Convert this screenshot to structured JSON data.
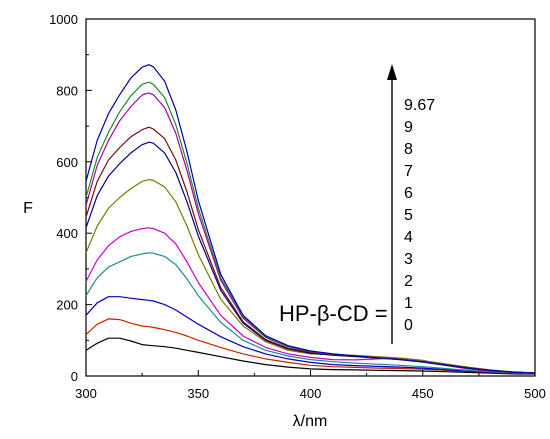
{
  "chart_data": {
    "type": "line",
    "title": "",
    "xlabel": "λ/nm",
    "ylabel": "F",
    "xlim": [
      300,
      500
    ],
    "ylim": [
      0,
      1000
    ],
    "xticks": [
      300,
      350,
      400,
      450,
      500
    ],
    "yticks": [
      0,
      200,
      400,
      600,
      800,
      1000
    ],
    "grid": false,
    "annotation": {
      "label": "HP-β-CD =",
      "concentrations": [
        "9.67",
        "9",
        "8",
        "7",
        "6",
        "5",
        "4",
        "3",
        "2",
        "1",
        "0"
      ],
      "arrow": "up"
    },
    "x": [
      300,
      305,
      310,
      315,
      320,
      325,
      328,
      330,
      335,
      340,
      345,
      350,
      360,
      370,
      380,
      390,
      400,
      410,
      420,
      430,
      440,
      450,
      460,
      470,
      480,
      490,
      500
    ],
    "series": [
      {
        "color": "#000000",
        "values": [
          72,
          92,
          106,
          106,
          98,
          88,
          86,
          85,
          82,
          78,
          72,
          66,
          54,
          42,
          32,
          25,
          20,
          18,
          17,
          16,
          15,
          14,
          12,
          10,
          8,
          6,
          5
        ]
      },
      {
        "color": "#cc2200",
        "values": [
          116,
          145,
          160,
          158,
          148,
          140,
          138,
          136,
          130,
          122,
          112,
          100,
          80,
          62,
          48,
          38,
          30,
          26,
          24,
          22,
          21,
          19,
          16,
          13,
          10,
          8,
          6
        ]
      },
      {
        "color": "#0000cc",
        "values": [
          170,
          205,
          222,
          222,
          218,
          214,
          212,
          210,
          200,
          185,
          165,
          145,
          110,
          82,
          62,
          48,
          38,
          32,
          29,
          27,
          25,
          22,
          18,
          14,
          11,
          8,
          6
        ]
      },
      {
        "color": "#1e8a96",
        "values": [
          225,
          275,
          305,
          320,
          335,
          342,
          345,
          344,
          335,
          312,
          272,
          225,
          150,
          100,
          72,
          56,
          46,
          40,
          36,
          33,
          30,
          26,
          21,
          16,
          12,
          9,
          6
        ]
      },
      {
        "color": "#cc00cc",
        "values": [
          265,
          325,
          365,
          390,
          405,
          413,
          415,
          413,
          400,
          370,
          320,
          262,
          170,
          112,
          80,
          62,
          52,
          46,
          45,
          48,
          50,
          44,
          30,
          20,
          14,
          10,
          8
        ]
      },
      {
        "color": "#7a7a00",
        "values": [
          345,
          420,
          470,
          500,
          525,
          545,
          550,
          548,
          530,
          488,
          420,
          340,
          215,
          140,
          96,
          72,
          62,
          60,
          58,
          54,
          50,
          43,
          34,
          25,
          17,
          12,
          9
        ]
      },
      {
        "color": "#000088",
        "values": [
          415,
          505,
          560,
          595,
          625,
          648,
          655,
          652,
          625,
          570,
          488,
          392,
          240,
          148,
          100,
          76,
          64,
          58,
          54,
          50,
          46,
          39,
          30,
          22,
          15,
          11,
          8
        ]
      },
      {
        "color": "#6e0f0f",
        "values": [
          445,
          545,
          605,
          640,
          670,
          690,
          697,
          692,
          665,
          605,
          515,
          410,
          248,
          152,
          102,
          78,
          66,
          60,
          56,
          51,
          47,
          40,
          31,
          23,
          16,
          11,
          8
        ]
      },
      {
        "color": "#aa00aa",
        "values": [
          478,
          590,
          660,
          715,
          755,
          787,
          793,
          788,
          752,
          680,
          575,
          455,
          268,
          162,
          108,
          82,
          68,
          61,
          56,
          51,
          47,
          40,
          31,
          23,
          16,
          11,
          8
        ]
      },
      {
        "color": "#228b22",
        "values": [
          500,
          612,
          683,
          740,
          785,
          817,
          823,
          817,
          780,
          704,
          595,
          470,
          275,
          166,
          110,
          83,
          69,
          61,
          56,
          51,
          46,
          40,
          31,
          23,
          16,
          11,
          8
        ]
      },
      {
        "color": "#0000aa",
        "values": [
          545,
          660,
          735,
          788,
          835,
          865,
          872,
          866,
          826,
          745,
          628,
          492,
          285,
          170,
          113,
          85,
          70,
          62,
          56,
          51,
          46,
          40,
          31,
          23,
          16,
          11,
          8
        ]
      }
    ]
  }
}
